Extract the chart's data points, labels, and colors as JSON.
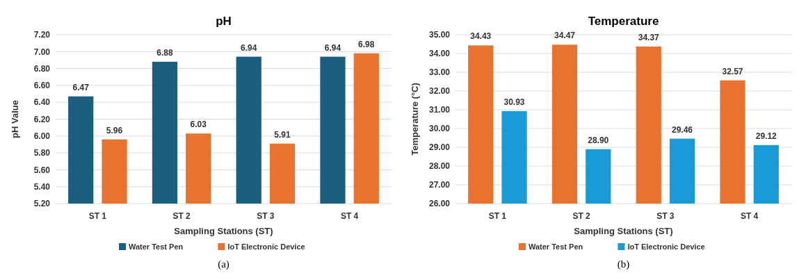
{
  "chart_data": [
    {
      "type": "bar",
      "title": "pH",
      "xlabel": "Sampling Stations (ST)",
      "ylabel": "pH Value",
      "categories": [
        "ST 1",
        "ST 2",
        "ST 3",
        "ST 4"
      ],
      "series": [
        {
          "name": "Water Test Pen",
          "color": "#1b5f80",
          "values": [
            6.47,
            6.88,
            6.94,
            6.94
          ]
        },
        {
          "name": "IoT Electronic Device",
          "color": "#e8722f",
          "values": [
            5.96,
            6.03,
            5.91,
            6.98
          ]
        }
      ],
      "ylim": [
        5.2,
        7.2
      ],
      "yticks": [
        {
          "value": 5.2,
          "label": "5.20"
        },
        {
          "value": 5.4,
          "label": "5.40"
        },
        {
          "value": 5.6,
          "label": "5.60"
        },
        {
          "value": 5.8,
          "label": "5.80"
        },
        {
          "value": 6,
          "label": "6.00"
        },
        {
          "value": 6.2,
          "label": "6.20"
        },
        {
          "value": 6.4,
          "label": "6.40"
        },
        {
          "value": 6.6,
          "label": "6.60"
        },
        {
          "value": 6.8,
          "label": "6.80"
        },
        {
          "value": 7,
          "label": "7.00"
        },
        {
          "value": 7.2,
          "label": "7.20"
        }
      ],
      "grid": "y",
      "legend": "bottom",
      "data_labels": true,
      "annotations": [
        "(a)"
      ]
    },
    {
      "type": "bar",
      "title": "Temperature",
      "xlabel": "Sampling Stations (ST)",
      "ylabel": "Temperature (°C)",
      "categories": [
        "ST 1",
        "ST 2",
        "ST 3",
        "ST 4"
      ],
      "series": [
        {
          "name": "Water Test Pen",
          "color": "#e8722f",
          "values": [
            34.43,
            34.47,
            34.37,
            32.57
          ],
          "value_labels": [
            "34.43",
            "34.47",
            "34.37",
            "32.57"
          ]
        },
        {
          "name": "IoT Electronic Device",
          "color": "#1a9bd7",
          "values": [
            30.93,
            28.9,
            29.46,
            29.12
          ],
          "value_labels": [
            "30.93",
            "28.90",
            "29.46",
            "29.12"
          ]
        }
      ],
      "ylim": [
        26,
        35
      ],
      "yticks": [
        {
          "value": 26,
          "label": "26.00"
        },
        {
          "value": 27,
          "label": "27.00"
        },
        {
          "value": 28,
          "label": "28.00"
        },
        {
          "value": 29,
          "label": "29.00"
        },
        {
          "value": 30,
          "label": "30.00"
        },
        {
          "value": 31,
          "label": "31.00"
        },
        {
          "value": 32,
          "label": "32.00"
        },
        {
          "value": 33,
          "label": "33.00"
        },
        {
          "value": 34,
          "label": "34.00"
        },
        {
          "value": 35,
          "label": "35.00"
        }
      ],
      "grid": "y",
      "legend": "bottom",
      "annotations": [
        "(b)"
      ]
    }
  ]
}
